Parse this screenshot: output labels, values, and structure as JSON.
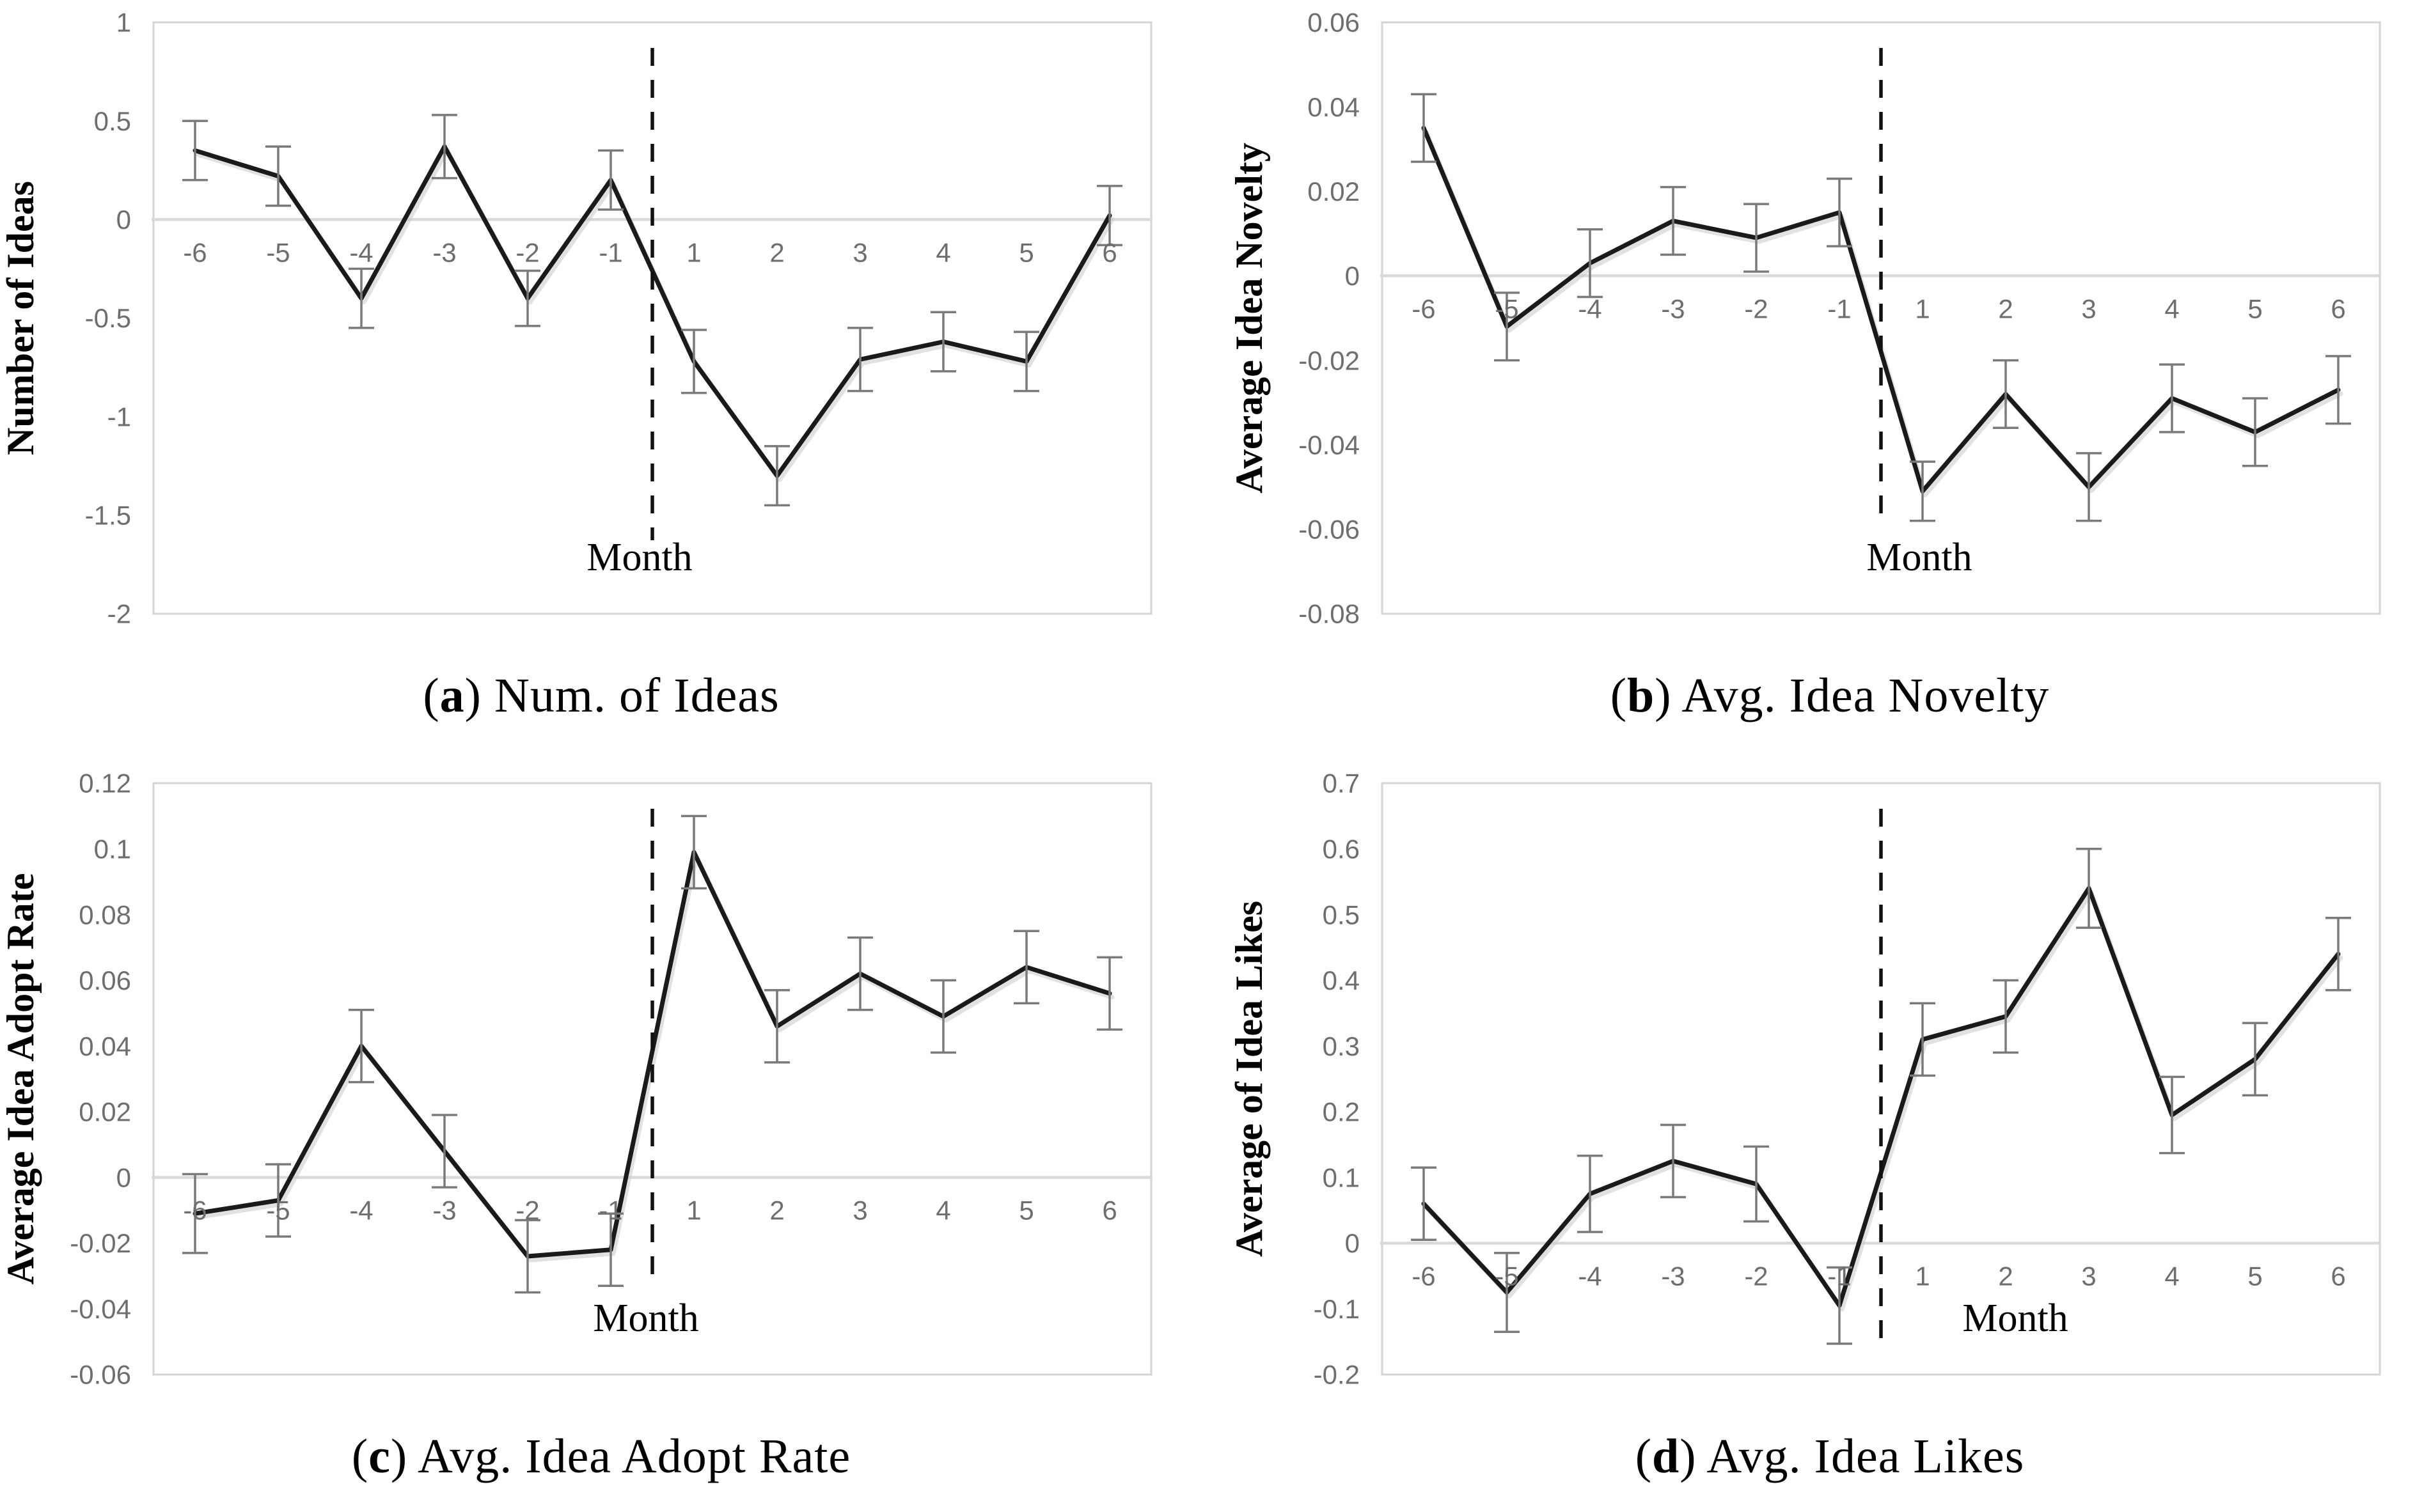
{
  "page": {
    "background": "#ffffff"
  },
  "colors": {
    "line": "#1a1a1a",
    "line_shadow": "#c9c9c9",
    "error_bar": "#7a7a7a",
    "tick_label": "#6e6e6e",
    "plot_border": "#d4d4d4",
    "zero_gridline": "#d9d9d9",
    "dashed_line": "#111111",
    "axis_title": "#000000",
    "caption": "#000000"
  },
  "x_axis": {
    "label": "Month",
    "tick_labels": [
      "-6",
      "-5",
      "-4",
      "-3",
      "-2",
      "-1",
      "1",
      "2",
      "3",
      "4",
      "5",
      "6"
    ]
  },
  "chart_data": [
    {
      "type": "line",
      "id": "a",
      "title": "(a) Num. of Ideas",
      "caption_open": "(",
      "caption_letter": "a",
      "caption_rest": ") Num. of Ideas",
      "ylabel": "Number of Ideas",
      "xlabel": "Month",
      "categories": [
        "-6",
        "-5",
        "-4",
        "-3",
        "-2",
        "-1",
        "1",
        "2",
        "3",
        "4",
        "5",
        "6"
      ],
      "values": [
        0.35,
        0.22,
        -0.4,
        0.37,
        -0.4,
        0.2,
        -0.72,
        -1.3,
        -0.71,
        -0.62,
        -0.72,
        0.02
      ],
      "errors": [
        0.15,
        0.15,
        0.15,
        0.16,
        0.14,
        0.15,
        0.16,
        0.15,
        0.16,
        0.15,
        0.15,
        0.15
      ],
      "ylim": [
        -2,
        1
      ],
      "yticks": [
        "1",
        "0.5",
        "0",
        "-0.5",
        "-1",
        "-1.5",
        "-2"
      ],
      "dashed_line_between": [
        "-1",
        "1"
      ],
      "grid": "zero-line-only",
      "legend": "none"
    },
    {
      "type": "line",
      "id": "b",
      "title": "(b) Avg. Idea Novelty",
      "caption_open": "(",
      "caption_letter": "b",
      "caption_rest": ") Avg. Idea Novelty",
      "ylabel": "Average Idea Novelty",
      "xlabel": "Month",
      "categories": [
        "-6",
        "-5",
        "-4",
        "-3",
        "-2",
        "-1",
        "1",
        "2",
        "3",
        "4",
        "5",
        "6"
      ],
      "values": [
        0.035,
        -0.012,
        0.003,
        0.013,
        0.009,
        0.015,
        -0.051,
        -0.028,
        -0.05,
        -0.029,
        -0.037,
        -0.027
      ],
      "errors": [
        0.008,
        0.008,
        0.008,
        0.008,
        0.008,
        0.008,
        0.007,
        0.008,
        0.008,
        0.008,
        0.008,
        0.008
      ],
      "ylim": [
        -0.08,
        0.06
      ],
      "yticks": [
        "0.06",
        "0.04",
        "0.02",
        "0",
        "-0.02",
        "-0.04",
        "-0.06",
        "-0.08"
      ],
      "dashed_line_between": [
        "-1",
        "1"
      ],
      "grid": "zero-line-only",
      "legend": "none"
    },
    {
      "type": "line",
      "id": "c",
      "title": "(c) Avg. Idea Adopt Rate",
      "caption_open": "(",
      "caption_letter": "c",
      "caption_rest": ") Avg. Idea Adopt Rate",
      "ylabel": "Average Idea Adopt Rate",
      "xlabel": "Month",
      "categories": [
        "-6",
        "-5",
        "-4",
        "-3",
        "-2",
        "-1",
        "1",
        "2",
        "3",
        "4",
        "5",
        "6"
      ],
      "values": [
        -0.011,
        -0.007,
        0.04,
        0.008,
        -0.024,
        -0.022,
        0.099,
        0.046,
        0.062,
        0.049,
        0.064,
        0.056
      ],
      "errors": [
        0.012,
        0.011,
        0.011,
        0.011,
        0.011,
        0.011,
        0.011,
        0.011,
        0.011,
        0.011,
        0.011,
        0.011
      ],
      "ylim": [
        -0.06,
        0.12
      ],
      "yticks": [
        "0.12",
        "0.1",
        "0.08",
        "0.06",
        "0.04",
        "0.02",
        "0",
        "-0.02",
        "-0.04",
        "-0.06"
      ],
      "dashed_line_between": [
        "-1",
        "1"
      ],
      "grid": "zero-line-only",
      "legend": "none"
    },
    {
      "type": "line",
      "id": "d",
      "title": "(d) Avg. Idea Likes",
      "caption_open": "(",
      "caption_letter": "d",
      "caption_rest": ") Avg. Idea Likes",
      "ylabel": "Average of Idea Likes",
      "xlabel": "Month",
      "categories": [
        "-6",
        "-5",
        "-4",
        "-3",
        "-2",
        "-1",
        "1",
        "2",
        "3",
        "4",
        "5",
        "6"
      ],
      "values": [
        0.06,
        -0.075,
        0.075,
        0.125,
        0.09,
        -0.095,
        0.31,
        0.345,
        0.54,
        0.195,
        0.28,
        0.44
      ],
      "errors": [
        0.055,
        0.06,
        0.058,
        0.055,
        0.057,
        0.058,
        0.055,
        0.055,
        0.06,
        0.058,
        0.055,
        0.055
      ],
      "ylim": [
        -0.2,
        0.7
      ],
      "yticks": [
        "0.7",
        "0.6",
        "0.5",
        "0.4",
        "0.3",
        "0.2",
        "0.1",
        "0",
        "-0.1",
        "-0.2"
      ],
      "dashed_line_between": [
        "-1",
        "1"
      ],
      "grid": "zero-line-only",
      "legend": "none"
    }
  ]
}
